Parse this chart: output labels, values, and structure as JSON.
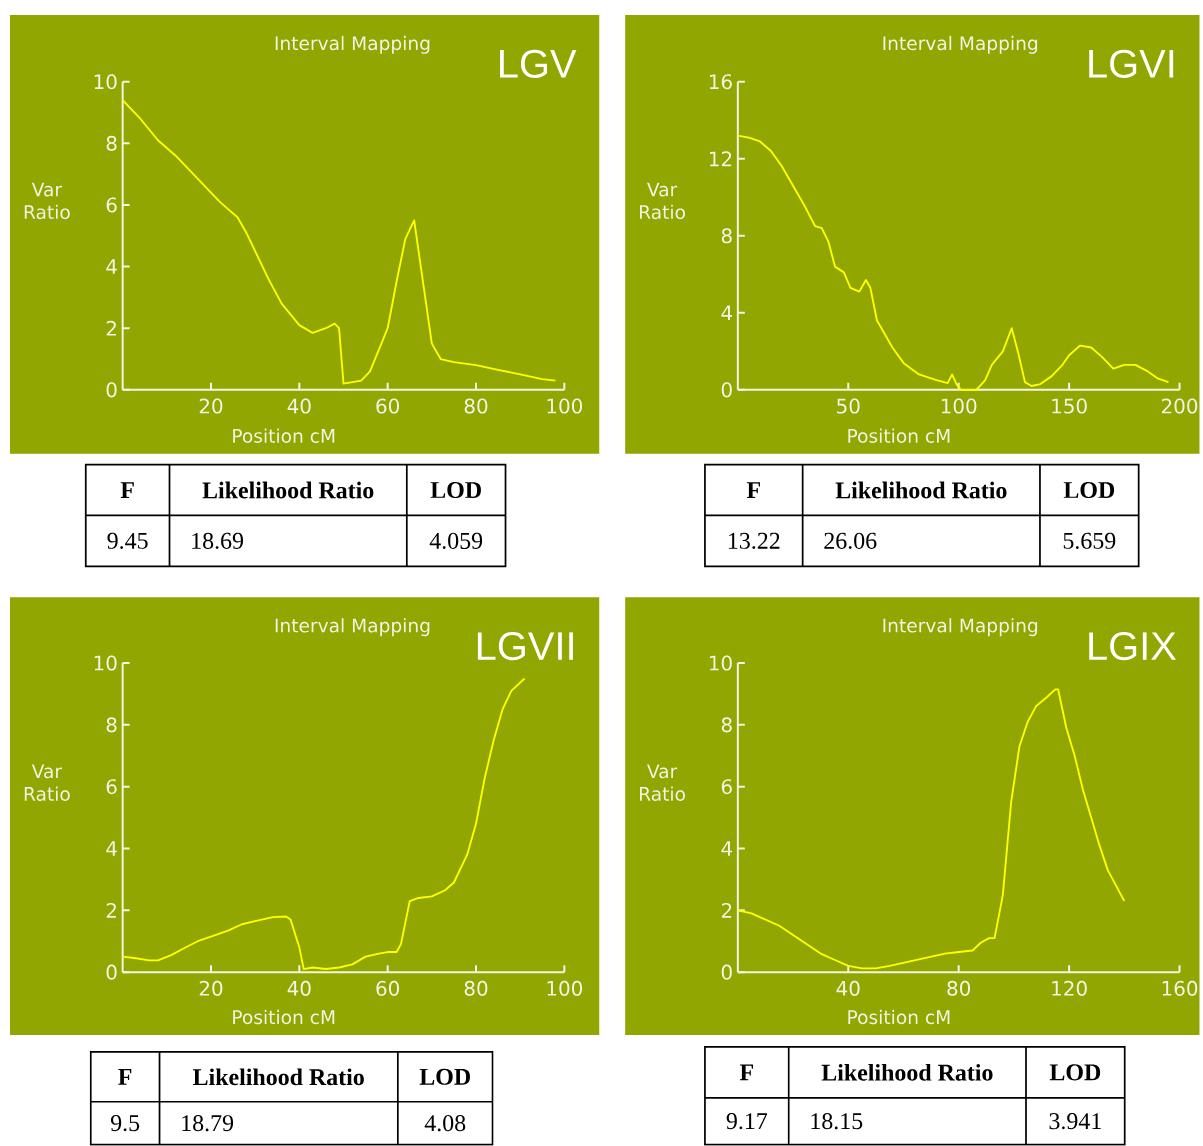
{
  "chart_data": [
    {
      "type": "line",
      "title": "Interval Mapping",
      "subtitle": "LGV",
      "xlabel": "Position cM",
      "ylabel": "Var Ratio",
      "xlim": [
        0,
        100
      ],
      "ylim": [
        0,
        10
      ],
      "xticks": [
        20,
        40,
        60,
        80,
        100
      ],
      "yticks": [
        0,
        2,
        4,
        6,
        8,
        10
      ],
      "x": [
        0,
        4,
        8,
        12,
        16,
        20,
        22,
        24,
        26,
        28,
        30,
        33,
        36,
        40,
        43,
        46,
        48,
        49,
        50,
        52,
        54,
        56,
        58,
        60,
        62,
        64,
        66,
        68,
        70,
        72,
        75,
        80,
        85,
        90,
        95,
        98
      ],
      "series": [
        {
          "color": "#ffff00",
          "values": [
            9.4,
            8.8,
            8.1,
            7.6,
            7.0,
            6.4,
            6.1,
            5.85,
            5.6,
            5.1,
            4.5,
            3.6,
            2.8,
            2.1,
            1.85,
            2.0,
            2.15,
            2.0,
            0.2,
            0.25,
            0.3,
            0.6,
            1.3,
            2.0,
            3.5,
            4.9,
            5.5,
            3.5,
            1.5,
            1.0,
            0.9,
            0.8,
            0.65,
            0.5,
            0.35,
            0.3
          ]
        }
      ],
      "annotations": [
        "F",
        "Likelihood Ratio",
        "LOD",
        "9.45",
        "18.69",
        "4.059"
      ]
    },
    {
      "type": "line",
      "title": "Interval Mapping",
      "subtitle": "LGVI",
      "xlabel": "Position cM",
      "ylabel": "Var Ratio",
      "xlim": [
        0,
        200
      ],
      "ylim": [
        0,
        16
      ],
      "xticks": [
        50,
        100,
        150,
        200
      ],
      "yticks": [
        0,
        4,
        8,
        12,
        16
      ],
      "x": [
        0,
        5,
        10,
        15,
        20,
        25,
        30,
        35,
        38,
        41,
        44,
        48,
        51,
        55,
        58,
        60,
        63,
        66,
        70,
        75,
        82,
        90,
        95,
        97,
        99,
        101,
        108,
        112,
        115,
        120,
        124,
        127,
        130,
        133,
        137,
        142,
        147,
        150,
        155,
        160,
        165,
        170,
        175,
        180,
        185,
        190,
        195
      ],
      "series": [
        {
          "color": "#ffff00",
          "values": [
            13.2,
            13.1,
            12.9,
            12.4,
            11.6,
            10.6,
            9.6,
            8.5,
            8.4,
            7.7,
            6.4,
            6.1,
            5.3,
            5.1,
            5.7,
            5.3,
            3.6,
            3.0,
            2.2,
            1.4,
            0.8,
            0.5,
            0.35,
            0.8,
            0.3,
            0,
            0,
            0.5,
            1.3,
            2.0,
            3.2,
            1.9,
            0.4,
            0.2,
            0.3,
            0.7,
            1.3,
            1.8,
            2.3,
            2.2,
            1.7,
            1.1,
            1.3,
            1.3,
            1.0,
            0.6,
            0.4
          ]
        }
      ],
      "annotations": [
        "F",
        "Likelihood Ratio",
        "LOD",
        "13.22",
        "26.06",
        "5.659"
      ]
    },
    {
      "type": "line",
      "title": "Interval Mapping",
      "subtitle": "LGVII",
      "xlabel": "Position cM",
      "ylabel": "Var Ratio",
      "xlim": [
        0,
        100
      ],
      "ylim": [
        0,
        10
      ],
      "xticks": [
        20,
        40,
        60,
        80,
        100
      ],
      "yticks": [
        0,
        2,
        4,
        6,
        8,
        10
      ],
      "x": [
        0,
        3,
        6,
        8,
        11,
        14,
        17,
        20,
        24,
        27,
        30,
        34,
        37,
        38,
        40,
        41,
        43,
        46,
        49,
        52,
        55,
        58,
        60,
        62,
        63,
        65,
        67,
        70,
        73,
        75,
        78,
        80,
        82,
        84,
        86,
        88,
        91
      ],
      "series": [
        {
          "color": "#ffff00",
          "values": [
            0.5,
            0.45,
            0.38,
            0.38,
            0.55,
            0.78,
            1.0,
            1.15,
            1.35,
            1.55,
            1.65,
            1.78,
            1.8,
            1.7,
            0.8,
            0.1,
            0.15,
            0.1,
            0.15,
            0.25,
            0.5,
            0.6,
            0.65,
            0.65,
            0.9,
            2.3,
            2.4,
            2.45,
            2.65,
            2.9,
            3.8,
            4.8,
            6.3,
            7.5,
            8.5,
            9.1,
            9.5
          ]
        }
      ],
      "annotations": [
        "F",
        "Likelihood Ratio",
        "LOD",
        "9.5",
        "18.79",
        "4.08"
      ]
    },
    {
      "type": "line",
      "title": "Interval Mapping",
      "subtitle": "LGIX",
      "xlabel": "Position cM",
      "ylabel": "Var Ratio",
      "xlim": [
        0,
        160
      ],
      "ylim": [
        0,
        10
      ],
      "xticks": [
        40,
        80,
        120,
        160
      ],
      "yticks": [
        0,
        2,
        4,
        6,
        8,
        10
      ],
      "x": [
        0,
        5,
        10,
        15,
        20,
        25,
        30,
        35,
        40,
        45,
        50,
        55,
        60,
        65,
        70,
        75,
        80,
        85,
        88,
        91,
        93,
        96,
        99,
        102,
        105,
        108,
        112,
        115,
        116,
        119,
        122,
        125,
        128,
        131,
        134,
        137,
        140
      ],
      "series": [
        {
          "color": "#ffff00",
          "values": [
            2.0,
            1.9,
            1.7,
            1.5,
            1.2,
            0.9,
            0.6,
            0.4,
            0.2,
            0.12,
            0.12,
            0.2,
            0.3,
            0.4,
            0.5,
            0.6,
            0.65,
            0.7,
            0.95,
            1.1,
            1.1,
            2.5,
            5.5,
            7.3,
            8.1,
            8.6,
            8.9,
            9.15,
            9.15,
            7.9,
            7.0,
            5.9,
            5.0,
            4.1,
            3.3,
            2.8,
            2.3
          ]
        }
      ],
      "annotations": [
        "F",
        "Likelihood Ratio",
        "LOD",
        "9.17",
        "18.15",
        "3.941"
      ]
    }
  ]
}
